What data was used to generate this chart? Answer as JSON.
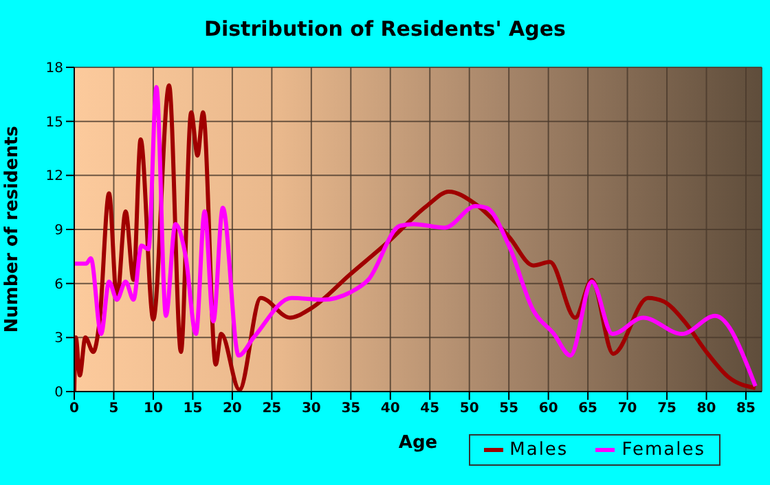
{
  "chart_data": {
    "type": "line",
    "title": "Distribution of Residents' Ages",
    "xlabel": "Age",
    "ylabel": "Number of residents",
    "xlim": [
      0,
      87
    ],
    "xticks": [
      0,
      5,
      10,
      15,
      20,
      25,
      30,
      35,
      40,
      45,
      50,
      55,
      60,
      65,
      70,
      75,
      80,
      85
    ],
    "ylim": [
      0,
      18
    ],
    "yticks": [
      0,
      3,
      6,
      9,
      12,
      15,
      18
    ],
    "grid": true,
    "legend": "bottom right",
    "marker": "none",
    "line_style": "solid",
    "series": [
      {
        "name": "Males",
        "color": "#a00000",
        "x": [
          0,
          0.2,
          0.7,
          1.4,
          2.4,
          3.2,
          4.4,
          5.4,
          6.5,
          7.5,
          8.4,
          10,
          12,
          13.5,
          14.8,
          15.6,
          16.3,
          17.9,
          18.6,
          20.9,
          23.6,
          27.3,
          29.9,
          34.9,
          39.7,
          44.6,
          47.4,
          50.8,
          55,
          58.1,
          60.2,
          63.4,
          65.5,
          68.2,
          72.6,
          74.6,
          77.2,
          80,
          82.8,
          86.2
        ],
        "values": [
          0,
          3,
          0.9,
          3,
          2.2,
          3.9,
          11,
          5.1,
          10,
          6.2,
          14,
          4,
          17,
          2.2,
          15.5,
          13.1,
          15.5,
          1.5,
          3.2,
          0.1,
          5.2,
          4.1,
          4.6,
          6.5,
          8.3,
          10.3,
          11.1,
          10.4,
          8.6,
          7,
          7.2,
          4.1,
          6.2,
          2.1,
          5.2,
          5,
          3.9,
          2.2,
          0.8,
          0.2
        ]
      },
      {
        "name": "Females",
        "color": "#ff00ff",
        "x": [
          0,
          1.5,
          2.1,
          3.4,
          4.4,
          5.4,
          6.5,
          7.5,
          8.5,
          9.4,
          10.4,
          11.6,
          12.8,
          14.1,
          15.4,
          16.5,
          17.6,
          18.8,
          20.8,
          22.7,
          27.5,
          31.5,
          34.9,
          37.2,
          41.2,
          42.9,
          46.9,
          50.8,
          52.2,
          55,
          58.1,
          60.7,
          62.8,
          65.5,
          68.1,
          72,
          76.9,
          81.1,
          86.2
        ],
        "values": [
          7.1,
          7.1,
          7.4,
          3.2,
          6.1,
          5.1,
          6.1,
          5.1,
          8.1,
          7.9,
          16.9,
          4.2,
          9.3,
          7.5,
          3.2,
          10,
          3.9,
          10.2,
          2,
          3,
          5.2,
          5.1,
          5.5,
          6.2,
          9.2,
          9.3,
          9.1,
          10.3,
          10.2,
          8.1,
          4.5,
          3.2,
          2,
          6.1,
          3.2,
          4.1,
          3.2,
          4.2,
          0.3
        ]
      }
    ]
  }
}
